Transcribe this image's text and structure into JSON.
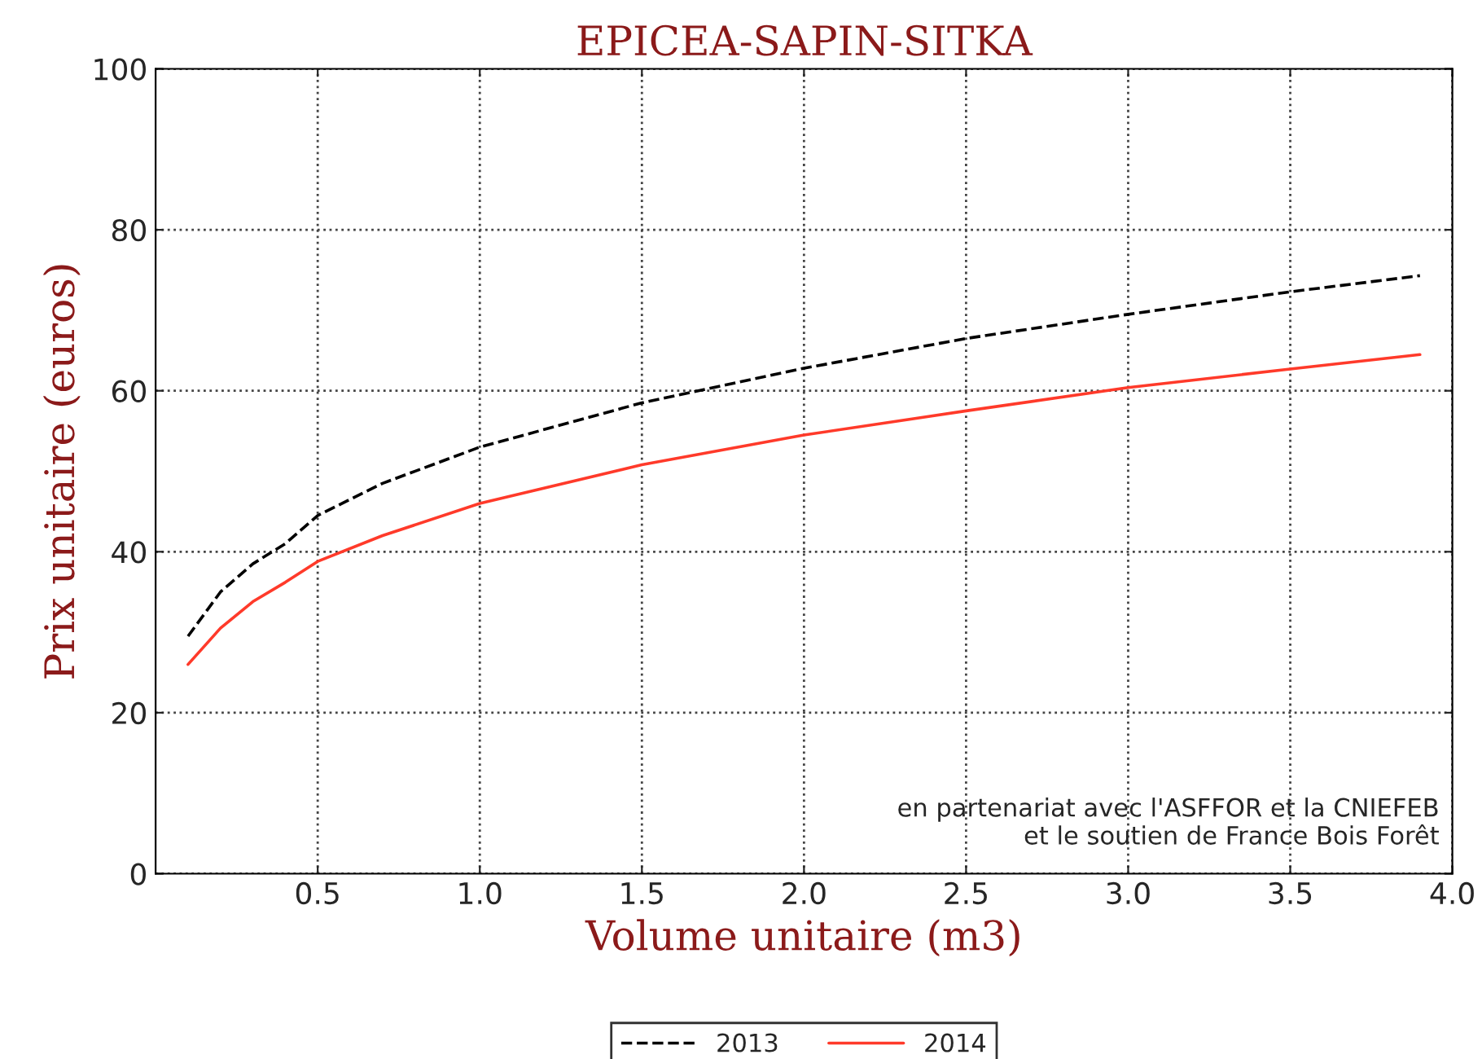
{
  "chart_data": {
    "type": "line",
    "title": "EPICEA-SAPIN-SITKA",
    "xlabel": "Volume unitaire (m3)",
    "ylabel": "Prix unitaire (euros)",
    "x": [
      0.1,
      0.2,
      0.3,
      0.4,
      0.5,
      0.7,
      1.0,
      1.5,
      2.0,
      2.5,
      3.0,
      3.5,
      3.9
    ],
    "series": [
      {
        "name": "2013",
        "color": "#000000",
        "line_style": "dashed",
        "values": [
          29.5,
          35,
          38.5,
          41,
          44.5,
          48.5,
          53,
          58.5,
          62.8,
          66.5,
          69.5,
          72.3,
          74.3
        ]
      },
      {
        "name": "2014",
        "color": "#ff3a2a",
        "line_style": "solid",
        "values": [
          26,
          30.5,
          33.8,
          36.2,
          38.8,
          42,
          46,
          50.8,
          54.5,
          57.5,
          60.4,
          62.7,
          64.5
        ]
      }
    ],
    "xlim": [
      0,
      4.0
    ],
    "xticks": [
      {
        "value": 0.5,
        "label": "0.5"
      },
      {
        "value": 1.0,
        "label": "1.0"
      },
      {
        "value": 1.5,
        "label": "1.5"
      },
      {
        "value": 2.0,
        "label": "2.0"
      },
      {
        "value": 2.5,
        "label": "2.5"
      },
      {
        "value": 3.0,
        "label": "3.0"
      },
      {
        "value": 3.5,
        "label": "3.5"
      },
      {
        "value": 4.0,
        "label": "4.0"
      }
    ],
    "ylim": [
      0,
      100
    ],
    "yticks": [
      0,
      20,
      40,
      60,
      80,
      100
    ],
    "grid": true,
    "legend": "bottom",
    "annotations": [
      "en partenariat avec l'ASFFOR et la CNIEFEB\net le soutien de France Bois Forêt"
    ]
  }
}
